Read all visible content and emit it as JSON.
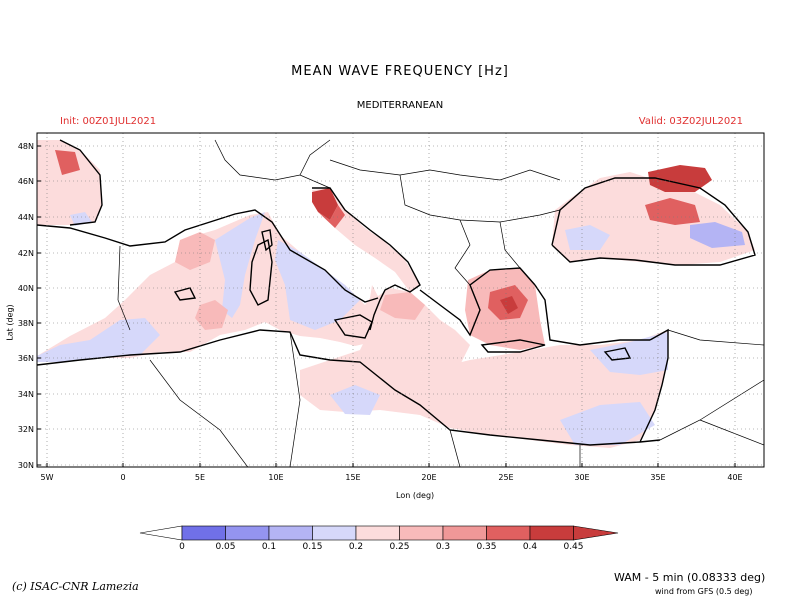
{
  "title": "MEAN WAVE FREQUENCY [Hz]",
  "subtitle": "MEDITERRANEAN",
  "init": "Init: 00Z01JUL2021",
  "valid": "Valid: 03Z02JUL2021",
  "map": {
    "lon_range": [
      -6,
      42
    ],
    "lat_range": [
      30,
      48.7
    ],
    "xlabel": "Lon (deg)",
    "ylabel": "Lat (deg)",
    "lon_ticks": [
      "5W",
      "0",
      "5E",
      "10E",
      "15E",
      "20E",
      "25E",
      "30E",
      "35E",
      "40E"
    ],
    "lat_ticks": [
      "48N",
      "46N",
      "44N",
      "42N",
      "40N",
      "38N",
      "36N",
      "34N",
      "32N",
      "30N"
    ],
    "grid": "dotted"
  },
  "colorbar": {
    "labels": [
      "0",
      "0.05",
      "0.1",
      "0.15",
      "0.2",
      "0.25",
      "0.3",
      "0.35",
      "0.4",
      "0.45"
    ],
    "colors": [
      "#7070e8",
      "#9494f0",
      "#b4b4f4",
      "#d6d8fa",
      "#fcdcdc",
      "#f8baba",
      "#f09898",
      "#e06060",
      "#c83c3c"
    ]
  },
  "credit": "(c) ISAC-CNR Lamezia",
  "model": "WAM - 5 min (0.08333 deg)",
  "wind_source": "wind from GFS (0.5 deg)"
}
